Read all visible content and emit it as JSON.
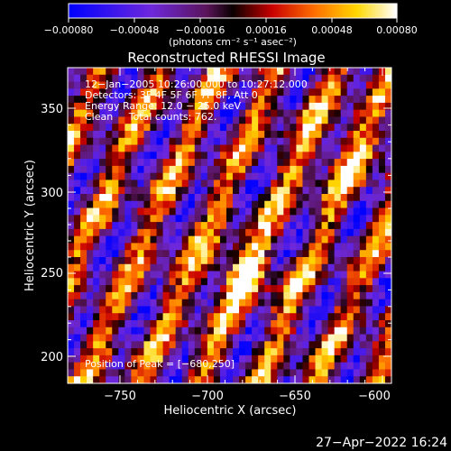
{
  "chart_data": {
    "type": "heatmap",
    "title": "Reconstructed RHESSI Image",
    "xlabel": "Heliocentric X (arcsec)",
    "ylabel": "Heliocentric Y (arcsec)",
    "xlim": [
      -780,
      -595
    ],
    "ylim": [
      182,
      378
    ],
    "xticks": [
      -750,
      -700,
      -650,
      -600
    ],
    "xtick_labels": [
      "−750",
      "−700",
      "−650",
      "−600"
    ],
    "yticks": [
      200,
      250,
      300,
      350
    ],
    "ytick_labels": [
      "200",
      "250",
      "300",
      "350"
    ],
    "colorbar": {
      "range": [
        -0.0008,
        0.0008
      ],
      "tick_labels": [
        "−0.00080",
        "−0.00048",
        "−0.00016",
        "0.00016",
        "0.00048",
        "0.00080"
      ],
      "unit_text": "(photons cm⁻² s⁻¹ asec⁻²)"
    },
    "annotations": [
      "12−Jan−2005 10:26:00.000 to 10:27:12.000",
      "Detectors: 3F 4F 5F 6F 7F 8F, Att 0",
      "Energy Range: 12.0 − 25.0 keV",
      "Clean     Total counts: 762."
    ],
    "peak_label": "Position of Peak = [−680,250]",
    "peak": [
      -680,
      250
    ]
  },
  "footer": {
    "timestamp": "27−Apr−2022 16:24"
  }
}
